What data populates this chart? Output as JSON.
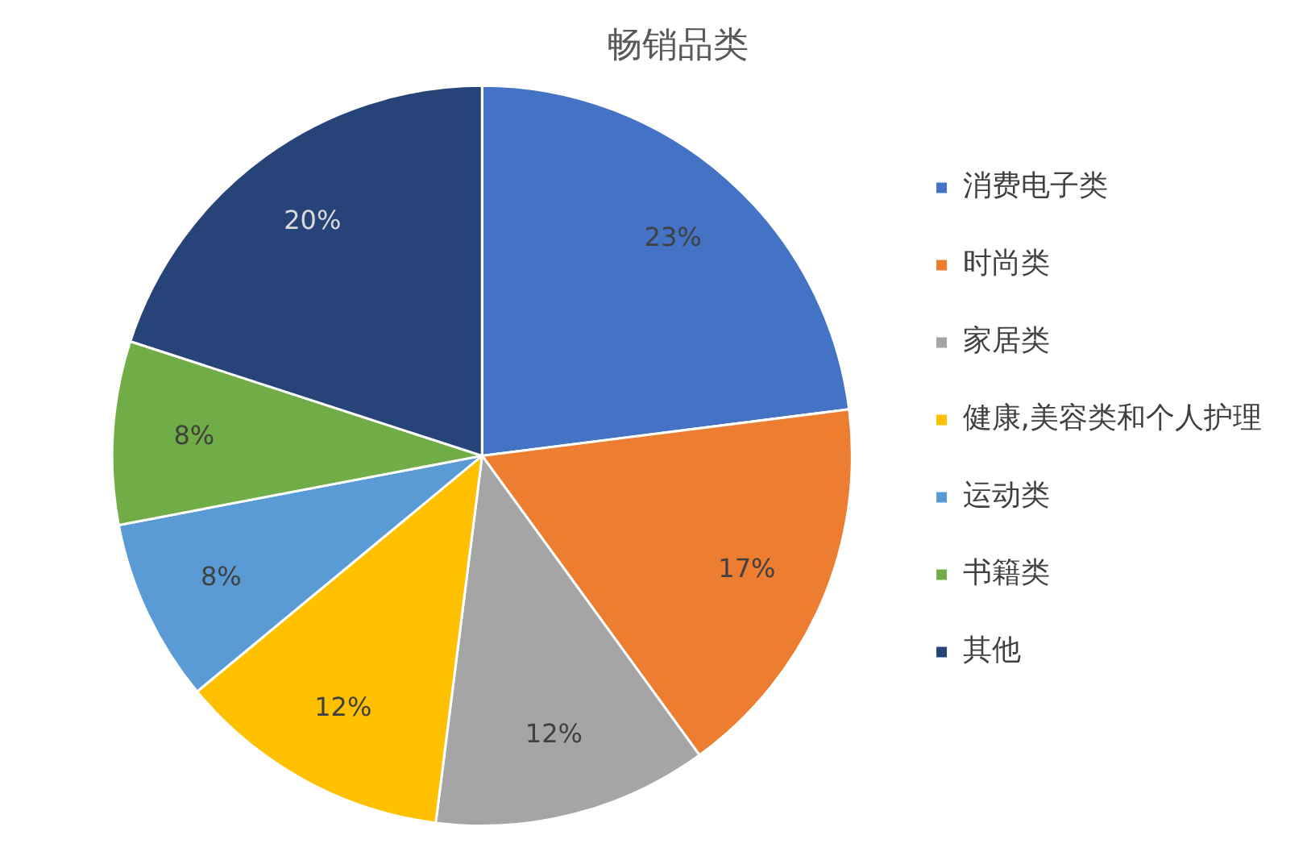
{
  "chart_data": {
    "type": "pie",
    "title": "畅销品类",
    "categories": [
      "消费电子类",
      "时尚类",
      "家居类",
      "健康,美容类和个人护理",
      "运动类",
      "书籍类",
      "其他"
    ],
    "values": [
      23,
      17,
      12,
      12,
      8,
      8,
      20
    ],
    "value_labels": [
      "23%",
      "17%",
      "12%",
      "12%",
      "8%",
      "8%",
      "20%"
    ],
    "colors": [
      "#4472c4",
      "#ed7d31",
      "#a5a5a5",
      "#ffc000",
      "#5b9bd5",
      "#70ad47",
      "#264478"
    ],
    "legend": "right"
  }
}
